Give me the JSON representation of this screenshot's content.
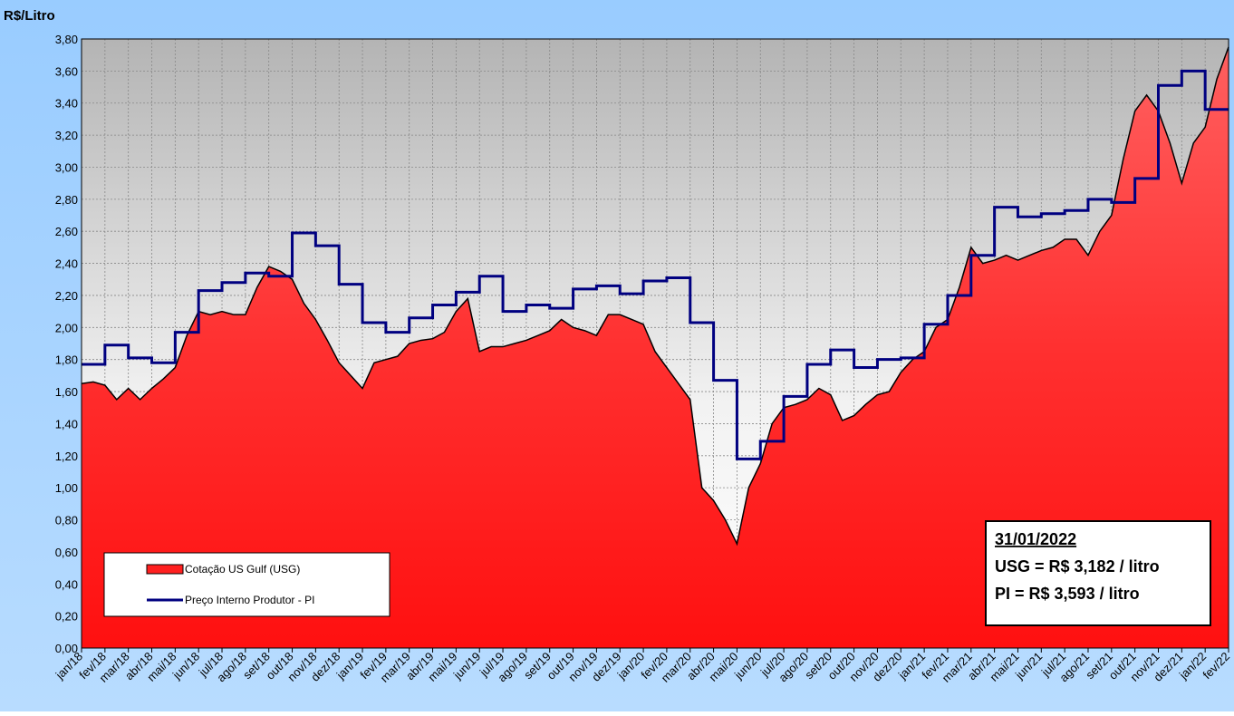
{
  "chart_data": {
    "type": "area",
    "ylabel": "R$/Litro",
    "categories": [
      "jan/18",
      null,
      "fev/18",
      null,
      "mar/18",
      null,
      "abr/18",
      null,
      "mai/18",
      null,
      "jun/18",
      null,
      "jul/18",
      null,
      "ago/18",
      null,
      "set/18",
      null,
      "out/18",
      null,
      "nov/18",
      null,
      "dez/18",
      null,
      "jan/19",
      null,
      "fev/19",
      null,
      "mar/19",
      null,
      "abr/19",
      null,
      "mai/19",
      null,
      "jun/19",
      null,
      "jul/19",
      null,
      "ago/19",
      null,
      "set/19",
      null,
      "out/19",
      null,
      "nov/19",
      null,
      "dez/19",
      null,
      "jan/20",
      null,
      "fev/20",
      null,
      "mar/20",
      null,
      "abr/20",
      null,
      "mai/20",
      null,
      "jun/20",
      null,
      "jul/20",
      null,
      "ago/20",
      null,
      "set/20",
      null,
      "out/20",
      null,
      "nov/20",
      null,
      "dez/20",
      null,
      "jan/21",
      null,
      "fev/21",
      null,
      "mar/21",
      null,
      "abr/21",
      null,
      "mai/21",
      null,
      "jun/21",
      null,
      "jul/21",
      null,
      "ago/21",
      null,
      "set/21",
      null,
      "out/21",
      null,
      "nov/21",
      null,
      "dez/21",
      null,
      "jan/22",
      null,
      "fev/22"
    ],
    "series": [
      {
        "name": "Cotação US Gulf (USG)",
        "style": "area",
        "color": "#ff2020",
        "line_color": "#000000",
        "values": [
          1.65,
          1.66,
          1.64,
          1.55,
          1.62,
          1.55,
          1.62,
          1.68,
          1.75,
          1.95,
          2.1,
          2.08,
          2.1,
          2.08,
          2.08,
          2.25,
          2.38,
          2.35,
          2.3,
          2.15,
          2.05,
          1.92,
          1.78,
          1.7,
          1.62,
          1.78,
          1.8,
          1.82,
          1.9,
          1.92,
          1.93,
          1.97,
          2.1,
          2.18,
          1.85,
          1.88,
          1.88,
          1.9,
          1.92,
          1.95,
          1.98,
          2.05,
          2.0,
          1.98,
          1.95,
          2.08,
          2.08,
          2.05,
          2.02,
          1.85,
          1.75,
          1.65,
          1.55,
          1.0,
          0.92,
          0.8,
          0.65,
          1.0,
          1.15,
          1.4,
          1.5,
          1.52,
          1.55,
          1.62,
          1.58,
          1.42,
          1.45,
          1.52,
          1.58,
          1.6,
          1.72,
          1.8,
          1.85,
          2.0,
          2.05,
          2.25,
          2.5,
          2.4,
          2.42,
          2.45,
          2.42,
          2.45,
          2.48,
          2.5,
          2.55,
          2.55,
          2.45,
          2.6,
          2.7,
          3.05,
          3.35,
          3.45,
          3.35,
          3.15,
          2.9,
          3.15,
          3.25,
          3.55,
          3.75
        ]
      },
      {
        "name": "Preço Interno Produtor - PI",
        "style": "step",
        "color": "#000080",
        "values": [
          1.77,
          1.77,
          1.89,
          1.89,
          1.81,
          1.81,
          1.78,
          1.78,
          1.97,
          1.97,
          2.23,
          2.23,
          2.28,
          2.28,
          2.34,
          2.34,
          2.32,
          2.32,
          2.59,
          2.59,
          2.51,
          2.51,
          2.27,
          2.27,
          2.03,
          2.03,
          1.97,
          1.97,
          2.06,
          2.06,
          2.14,
          2.14,
          2.22,
          2.22,
          2.32,
          2.32,
          2.1,
          2.1,
          2.14,
          2.14,
          2.12,
          2.12,
          2.24,
          2.24,
          2.26,
          2.26,
          2.21,
          2.21,
          2.29,
          2.29,
          2.31,
          2.31,
          2.03,
          2.03,
          1.67,
          1.67,
          1.18,
          1.18,
          1.29,
          1.29,
          1.57,
          1.57,
          1.77,
          1.77,
          1.86,
          1.86,
          1.75,
          1.75,
          1.8,
          1.8,
          1.81,
          1.81,
          2.02,
          2.02,
          2.2,
          2.2,
          2.45,
          2.45,
          2.75,
          2.75,
          2.69,
          2.69,
          2.71,
          2.71,
          2.73,
          2.73,
          2.8,
          2.8,
          2.78,
          2.78,
          2.93,
          2.93,
          3.51,
          3.51,
          3.6,
          3.6,
          3.36,
          3.36,
          3.36
        ]
      }
    ],
    "ylim": [
      0,
      3.8
    ],
    "yticks": [
      {
        "value": 0,
        "label": "0,00"
      },
      {
        "value": 0.2,
        "label": "0,20"
      },
      {
        "value": 0.4,
        "label": "0,40"
      },
      {
        "value": 0.6,
        "label": "0,60"
      },
      {
        "value": 0.8,
        "label": "0,80"
      },
      {
        "value": 1,
        "label": "1,00"
      },
      {
        "value": 1.2,
        "label": "1,20"
      },
      {
        "value": 1.4,
        "label": "1,40"
      },
      {
        "value": 1.6,
        "label": "1,60"
      },
      {
        "value": 1.8,
        "label": "1,80"
      },
      {
        "value": 2,
        "label": "2,00"
      },
      {
        "value": 2.2,
        "label": "2,20"
      },
      {
        "value": 2.4,
        "label": "2,40"
      },
      {
        "value": 2.6,
        "label": "2,60"
      },
      {
        "value": 2.8,
        "label": "2,80"
      },
      {
        "value": 3,
        "label": "3,00"
      },
      {
        "value": 3.2,
        "label": "3,20"
      },
      {
        "value": 3.4,
        "label": "3,40"
      },
      {
        "value": 3.6,
        "label": "3,60"
      },
      {
        "value": 3.8,
        "label": "3,80"
      }
    ],
    "grid": true,
    "legend": "lower left",
    "annotations": [
      "31/01/2022",
      "USG = R$ 3,182 / litro",
      "PI = R$ 3,593 / litro"
    ]
  }
}
